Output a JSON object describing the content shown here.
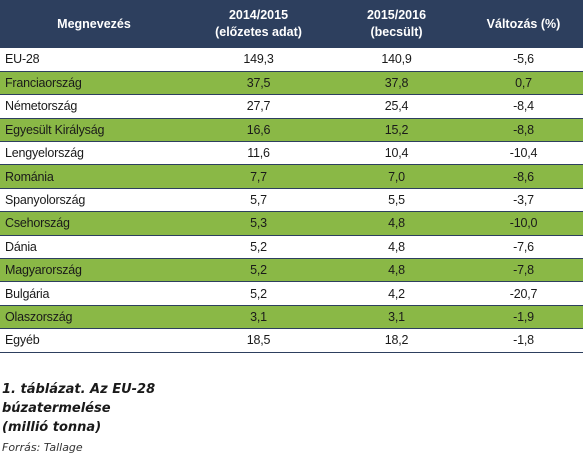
{
  "table": {
    "headers": [
      {
        "line1": "Megnevezés",
        "line2": ""
      },
      {
        "line1": "2014/2015",
        "line2": "(előzetes adat)"
      },
      {
        "line1": "2015/2016",
        "line2": "(becsült)"
      },
      {
        "line1": "Változás (%)",
        "line2": ""
      }
    ],
    "rows": [
      [
        "EU-28",
        "149,3",
        "140,9",
        "-5,6"
      ],
      [
        "Franciaország",
        "37,5",
        "37,8",
        "0,7"
      ],
      [
        "Németország",
        "27,7",
        "25,4",
        "-8,4"
      ],
      [
        "Egyesült Királyság",
        "16,6",
        "15,2",
        "-8,8"
      ],
      [
        "Lengyelország",
        "11,6",
        "10,4",
        "-10,4"
      ],
      [
        "Románia",
        "7,7",
        "7,0",
        "-8,6"
      ],
      [
        "Spanyolország",
        "5,7",
        "5,5",
        "-3,7"
      ],
      [
        "Csehország",
        "5,3",
        "4,8",
        "-10,0"
      ],
      [
        "Dánia",
        "5,2",
        "4,8",
        "-7,6"
      ],
      [
        "Magyarország",
        "5,2",
        "4,8",
        "-7,8"
      ],
      [
        "Bulgária",
        "5,2",
        "4,2",
        "-20,7"
      ],
      [
        "Olaszország",
        "3,1",
        "3,1",
        "-1,9"
      ],
      [
        "Egyéb",
        "18,5",
        "18,2",
        "-1,8"
      ]
    ]
  },
  "caption": {
    "line1": "1. táblázat. Az EU-28",
    "line2": "búzatermelése",
    "line3": "(millió tonna)",
    "source": "Forrás: Tallage"
  },
  "colors": {
    "header_bg": "#2d3f5e",
    "stripe_green": "#8ab846"
  }
}
